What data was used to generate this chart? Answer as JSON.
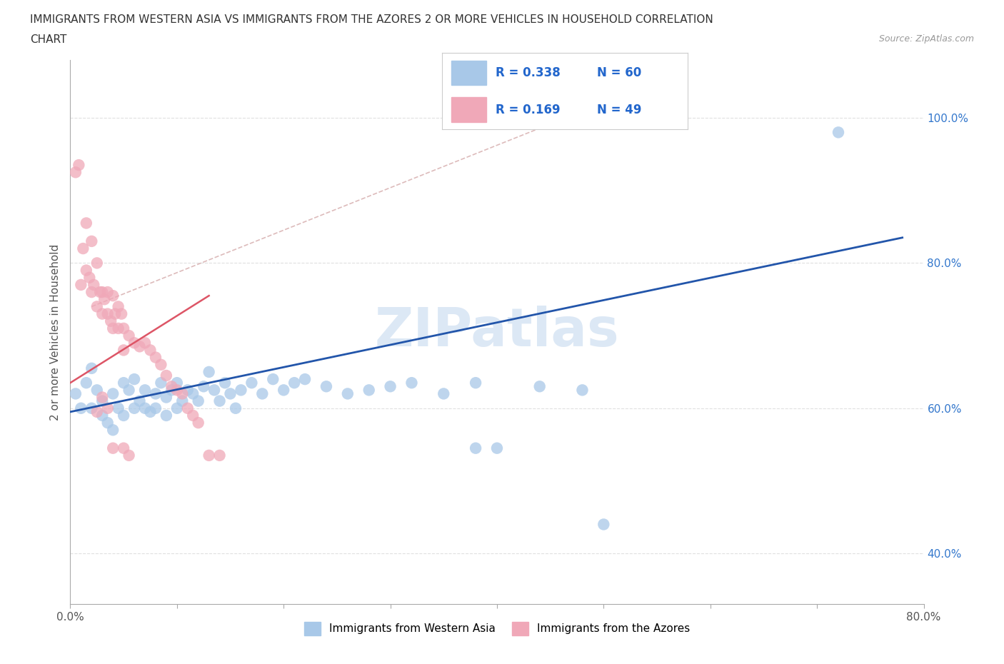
{
  "title_line1": "IMMIGRANTS FROM WESTERN ASIA VS IMMIGRANTS FROM THE AZORES 2 OR MORE VEHICLES IN HOUSEHOLD CORRELATION",
  "title_line2": "CHART",
  "source_text": "Source: ZipAtlas.com",
  "ylabel": "2 or more Vehicles in Household",
  "xlim": [
    0.0,
    0.8
  ],
  "ylim": [
    0.33,
    1.08
  ],
  "xtick_vals": [
    0.0,
    0.1,
    0.2,
    0.3,
    0.4,
    0.5,
    0.6,
    0.7,
    0.8
  ],
  "xtick_labels": [
    "0.0%",
    "",
    "",
    "",
    "",
    "",
    "",
    "",
    "80.0%"
  ],
  "ytick_right_vals": [
    0.4,
    0.6,
    0.8,
    1.0
  ],
  "ytick_right_labels": [
    "40.0%",
    "60.0%",
    "80.0%",
    "100.0%"
  ],
  "R_blue": 0.338,
  "N_blue": 60,
  "R_pink": 0.169,
  "N_pink": 49,
  "blue_color": "#a8c8e8",
  "pink_color": "#f0a8b8",
  "line_blue_color": "#2255aa",
  "line_pink_color": "#dd5566",
  "line_dashed_color": "#ddbbbb",
  "watermark_color": "#dce8f5",
  "legend_R_color": "#2266cc",
  "legend_box_color": "#cccccc",
  "grid_color": "#e0e0e0",
  "blue_line_x0": 0.0,
  "blue_line_y0": 0.595,
  "blue_line_x1": 0.78,
  "blue_line_y1": 0.835,
  "pink_line_x0": 0.0,
  "pink_line_y0": 0.635,
  "pink_line_x1": 0.13,
  "pink_line_y1": 0.755,
  "dash_line_x0": 0.02,
  "dash_line_y0": 0.74,
  "dash_line_x1": 0.55,
  "dash_line_y1": 1.05
}
